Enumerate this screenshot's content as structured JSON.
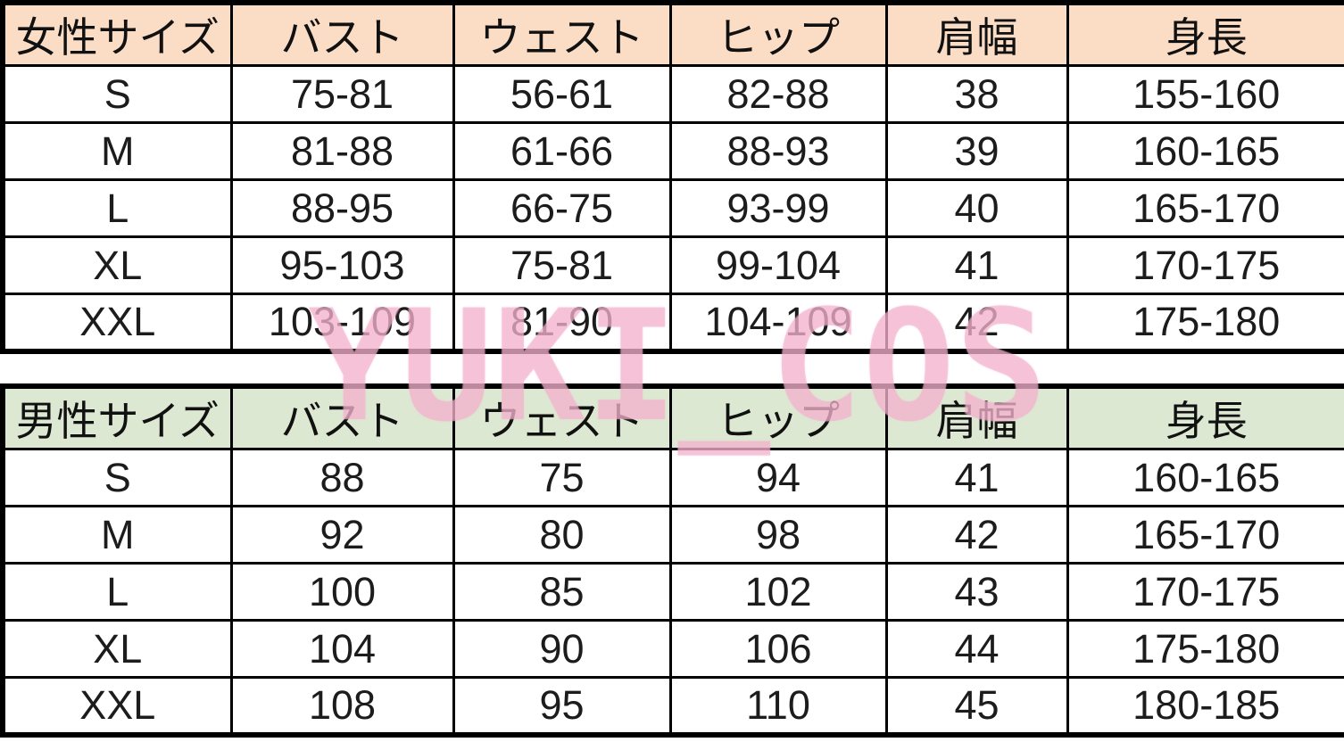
{
  "colors": {
    "women_header_bg": "#fbddc6",
    "men_header_bg": "#dde8d2",
    "border": "#000000",
    "watermark_pink": "#f3a9c8",
    "background": "#ffffff"
  },
  "watermark": {
    "text": "YUKI_COS"
  },
  "women": {
    "title": "女性サイズ",
    "headers": [
      "バスト",
      "ウェスト",
      "ヒップ",
      "肩幅",
      "身長"
    ],
    "rows": [
      [
        "S",
        "75-81",
        "56-61",
        "82-88",
        "38",
        "155-160"
      ],
      [
        "M",
        "81-88",
        "61-66",
        "88-93",
        "39",
        "160-165"
      ],
      [
        "L",
        "88-95",
        "66-75",
        "93-99",
        "40",
        "165-170"
      ],
      [
        "XL",
        "95-103",
        "75-81",
        "99-104",
        "41",
        "170-175"
      ],
      [
        "XXL",
        "103-109",
        "81-90",
        "104-109",
        "42",
        "175-180"
      ]
    ]
  },
  "men": {
    "title": "男性サイズ",
    "headers": [
      "バスト",
      "ウェスト",
      "ヒップ",
      "肩幅",
      "身長"
    ],
    "rows": [
      [
        "S",
        "88",
        "75",
        "94",
        "41",
        "160-165"
      ],
      [
        "M",
        "92",
        "80",
        "98",
        "42",
        "165-170"
      ],
      [
        "L",
        "100",
        "85",
        "102",
        "43",
        "170-175"
      ],
      [
        "XL",
        "104",
        "90",
        "106",
        "44",
        "175-180"
      ],
      [
        "XXL",
        "108",
        "95",
        "110",
        "45",
        "180-185"
      ]
    ]
  }
}
